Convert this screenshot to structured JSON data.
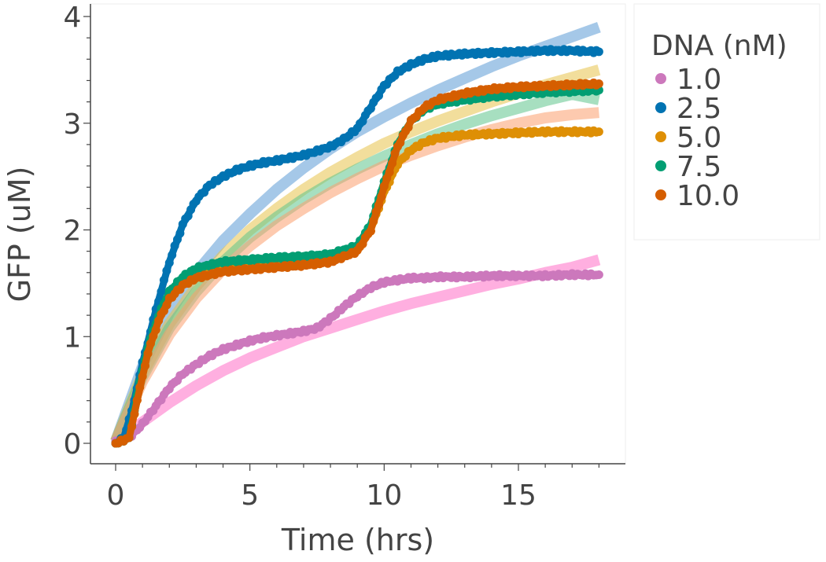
{
  "chart_data": {
    "type": "line",
    "title": "",
    "xlabel": "Time (hrs)",
    "ylabel": "GFP (uM)",
    "xlim": [
      -0.8,
      19
    ],
    "ylim": [
      -0.2,
      4.1
    ],
    "xticks": [
      0,
      5,
      10,
      15
    ],
    "yticks": [
      0,
      1,
      2,
      3,
      4
    ],
    "grid": false,
    "legend": {
      "title": "DNA (nM)",
      "placement": "outside-right"
    },
    "series": [
      {
        "name": "1.0",
        "color": "#cc78bc",
        "fit_color": "#ff6ec7",
        "data_x": [
          0,
          0.5,
          1,
          1.5,
          2,
          2.5,
          3,
          3.5,
          4,
          4.5,
          5,
          5.5,
          6,
          6.5,
          7,
          7.5,
          8,
          8.5,
          9,
          9.5,
          10,
          10.5,
          11,
          11.5,
          12,
          13,
          14,
          15,
          16,
          17,
          18
        ],
        "data_y": [
          0.02,
          0.05,
          0.18,
          0.35,
          0.52,
          0.65,
          0.74,
          0.82,
          0.88,
          0.92,
          0.96,
          0.99,
          1.01,
          1.03,
          1.05,
          1.08,
          1.17,
          1.28,
          1.38,
          1.46,
          1.51,
          1.53,
          1.55,
          1.55,
          1.56,
          1.56,
          1.57,
          1.57,
          1.57,
          1.58,
          1.58
        ],
        "fit_x": [
          0,
          1,
          2,
          3,
          4,
          5,
          6,
          7,
          8,
          9,
          10,
          11,
          12,
          13,
          14,
          15,
          16,
          17,
          18
        ],
        "fit_y": [
          0.02,
          0.2,
          0.38,
          0.54,
          0.68,
          0.8,
          0.9,
          1.0,
          1.08,
          1.16,
          1.24,
          1.31,
          1.37,
          1.43,
          1.49,
          1.54,
          1.6,
          1.65,
          1.72
        ]
      },
      {
        "name": "2.5",
        "color": "#0173b2",
        "fit_color": "#5b9bd5",
        "data_x": [
          0,
          0.3,
          0.6,
          1,
          1.5,
          2,
          2.5,
          3,
          3.5,
          4,
          4.5,
          5,
          5.5,
          6,
          7,
          8,
          8.5,
          9,
          9.5,
          10,
          10.5,
          11,
          11.5,
          12,
          12.5,
          13,
          14,
          15,
          16,
          17,
          18
        ],
        "data_y": [
          0.0,
          0.05,
          0.3,
          0.75,
          1.25,
          1.7,
          2.05,
          2.28,
          2.42,
          2.5,
          2.56,
          2.6,
          2.63,
          2.65,
          2.7,
          2.78,
          2.85,
          2.95,
          3.15,
          3.35,
          3.48,
          3.55,
          3.6,
          3.63,
          3.64,
          3.65,
          3.66,
          3.67,
          3.68,
          3.68,
          3.67
        ],
        "fit_x": [
          0,
          1,
          2,
          3,
          4,
          5,
          6,
          7,
          8,
          9,
          10,
          11,
          12,
          13,
          14,
          15,
          16,
          17,
          18
        ],
        "fit_y": [
          0.02,
          0.72,
          1.22,
          1.6,
          1.9,
          2.15,
          2.38,
          2.58,
          2.76,
          2.92,
          3.06,
          3.19,
          3.31,
          3.42,
          3.53,
          3.63,
          3.72,
          3.81,
          3.9
        ]
      },
      {
        "name": "5.0",
        "color": "#de8f05",
        "fit_color": "#e8c34a",
        "data_x": [
          0,
          0.5,
          0.8,
          1.2,
          1.6,
          2,
          2.5,
          3,
          4,
          5,
          6,
          7,
          8,
          9,
          9.5,
          10,
          10.5,
          11,
          11.5,
          12,
          13,
          14,
          15,
          16,
          17,
          18
        ],
        "data_y": [
          0.0,
          0.05,
          0.4,
          0.85,
          1.15,
          1.35,
          1.5,
          1.58,
          1.63,
          1.66,
          1.68,
          1.7,
          1.73,
          1.8,
          2.0,
          2.35,
          2.62,
          2.75,
          2.82,
          2.86,
          2.89,
          2.9,
          2.91,
          2.92,
          2.92,
          2.92
        ],
        "fit_x": [
          0,
          1,
          2,
          3,
          4,
          5,
          6,
          7,
          8,
          9,
          10,
          11,
          12,
          13,
          14,
          15,
          16,
          17,
          18
        ],
        "fit_y": [
          0.02,
          0.65,
          1.12,
          1.47,
          1.76,
          2.0,
          2.2,
          2.38,
          2.54,
          2.68,
          2.81,
          2.92,
          3.02,
          3.11,
          3.2,
          3.28,
          3.36,
          3.43,
          3.5
        ]
      },
      {
        "name": "7.5",
        "color": "#029e73",
        "fit_color": "#5ec48c",
        "data_x": [
          0,
          0.5,
          0.8,
          1.2,
          1.6,
          2,
          2.5,
          3,
          4,
          5,
          6,
          7,
          8,
          9,
          9.5,
          10,
          10.5,
          11,
          11.5,
          12,
          13,
          14,
          15,
          16,
          17,
          18
        ],
        "data_y": [
          0.0,
          0.05,
          0.45,
          0.9,
          1.2,
          1.42,
          1.56,
          1.64,
          1.7,
          1.72,
          1.74,
          1.75,
          1.77,
          1.85,
          2.05,
          2.45,
          2.8,
          3.02,
          3.13,
          3.18,
          3.22,
          3.25,
          3.27,
          3.29,
          3.3,
          3.31
        ],
        "fit_x": [
          0,
          1,
          2,
          3,
          4,
          5,
          6,
          7,
          8,
          9,
          10,
          11,
          12,
          13,
          14,
          15,
          16,
          17,
          18
        ],
        "fit_y": [
          0.02,
          0.62,
          1.08,
          1.42,
          1.7,
          1.93,
          2.12,
          2.29,
          2.44,
          2.57,
          2.69,
          2.8,
          2.9,
          2.99,
          3.07,
          3.14,
          3.21,
          3.27,
          3.22
        ]
      },
      {
        "name": "10.0",
        "color": "#d55e00",
        "fit_color": "#fc9e6e",
        "data_x": [
          0,
          0.5,
          0.8,
          1.2,
          1.6,
          2,
          2.5,
          3,
          4,
          5,
          6,
          7,
          8,
          9,
          9.5,
          10,
          10.5,
          11,
          11.5,
          12,
          13,
          14,
          15,
          16,
          17,
          18
        ],
        "data_y": [
          0.0,
          0.05,
          0.4,
          0.85,
          1.15,
          1.35,
          1.48,
          1.55,
          1.61,
          1.63,
          1.65,
          1.67,
          1.7,
          1.8,
          2.0,
          2.4,
          2.78,
          3.02,
          3.15,
          3.22,
          3.28,
          3.32,
          3.34,
          3.35,
          3.36,
          3.37
        ],
        "fit_x": [
          0,
          1,
          2,
          3,
          4,
          5,
          6,
          7,
          8,
          9,
          10,
          11,
          12,
          13,
          14,
          15,
          16,
          17,
          18
        ],
        "fit_y": [
          0.02,
          0.58,
          1.02,
          1.36,
          1.63,
          1.85,
          2.04,
          2.2,
          2.35,
          2.48,
          2.6,
          2.7,
          2.79,
          2.87,
          2.94,
          3.0,
          3.05,
          3.08,
          3.1
        ]
      }
    ]
  }
}
